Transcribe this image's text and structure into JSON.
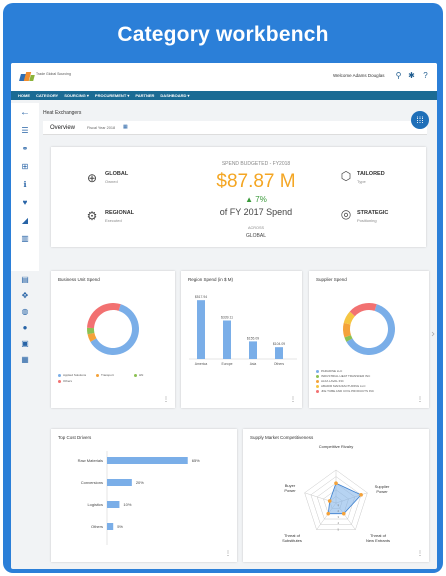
{
  "banner": {
    "title": "Category workbench"
  },
  "app": {
    "logo_text": "Trade Global Sourcing",
    "welcome": "Welcome Adams Douglas"
  },
  "nav": {
    "items": [
      "HOME",
      "CATEGORY",
      "SOURCING ▾",
      "PROCUREMENT ▾",
      "PARTNER",
      "DASHBOARD ▾"
    ]
  },
  "breadcrumb": "Heat Exchangers",
  "overview": {
    "title": "Overview",
    "fiscal_year": "Fiscal Year 2018"
  },
  "summary": {
    "global": {
      "label": "GLOBAL",
      "sub": "Owned"
    },
    "regional": {
      "label": "REGIONAL",
      "sub": "Executed"
    },
    "tailored": {
      "label": "TAILORED",
      "sub": "Type"
    },
    "strategic": {
      "label": "STRATEGIC",
      "sub": "Positioning"
    },
    "spend_budgeted": "SPEND BUDGETED - FY2018",
    "amount": "$87.87 M",
    "change": "▲ 7%",
    "of_spend": "of FY 2017 Spend",
    "across_label": "ACROSS",
    "across_value": "GLOBAL"
  },
  "colors": {
    "blue": "#7aaee8",
    "orange": "#f4a23a",
    "green": "#8cc152",
    "red": "#f27171",
    "accent": "#f4a623"
  },
  "cards": {
    "business_unit": {
      "title": "Business Unit Spend",
      "legend": [
        "Applied Solutions",
        "Transport",
        "HN",
        "Others"
      ]
    },
    "region": {
      "title": "Region Spend (in $ M)"
    },
    "supplier": {
      "title": "Supplier Spend",
      "legend": [
        "PARADISE LLC",
        "INDUSTRIAL HEAT TRANSFER INC",
        "ALFA LAVAL INC",
        "ABADIR MANUFACTURING LLC",
        "JFE TUBE AND CIVIL PRODUCTS INC"
      ]
    },
    "cost_drivers": {
      "title": "Top Cost Drivers"
    },
    "supply_market": {
      "title": "Supply Market Competitiveness"
    }
  },
  "chart_data": [
    {
      "type": "pie",
      "title": "Business Unit Spend",
      "categories": [
        "Applied Solutions",
        "Transport",
        "HN",
        "Others"
      ],
      "values": [
        62,
        5,
        4,
        29
      ]
    },
    {
      "type": "bar",
      "title": "Region Spend (in $ M)",
      "categories": [
        "America",
        "Europe",
        "Asia",
        "Others"
      ],
      "values": [
        517.94,
        339.11,
        155.09,
        104.09
      ],
      "value_labels": [
        "$517.94",
        "$339.11",
        "$155.09",
        "$104.09"
      ],
      "ylim": [
        0,
        560
      ]
    },
    {
      "type": "pie",
      "title": "Supplier Spend",
      "categories": [
        "PARADISE LLC",
        "INDUSTRIAL HEAT TRANSFER INC",
        "ALFA LAVAL INC",
        "ABADIR MANUFACTURING LLC",
        "JFE TUBE AND CIVIL PRODUCTS INC"
      ],
      "values": [
        62,
        3,
        9,
        8,
        18
      ]
    },
    {
      "type": "bar",
      "title": "Top Cost Drivers",
      "orientation": "horizontal",
      "categories": [
        "Raw Materials",
        "Conversions",
        "Logistics",
        "Others"
      ],
      "values": [
        65,
        20,
        10,
        5
      ],
      "value_labels": [
        "65%",
        "20%",
        "10%",
        "5%"
      ],
      "xlim": [
        0,
        100
      ]
    },
    {
      "type": "radar",
      "title": "Supply Market Competitiveness",
      "categories": [
        "Competitive Rivalry",
        "Supplier Power",
        "Threat of New Entrants",
        "Threat of Substitutes",
        "Buyer Power"
      ],
      "values": [
        3,
        4,
        2,
        2,
        1
      ],
      "scale_max": 5,
      "tick_labels": [
        "1",
        "2",
        "3",
        "4",
        "5"
      ]
    }
  ]
}
